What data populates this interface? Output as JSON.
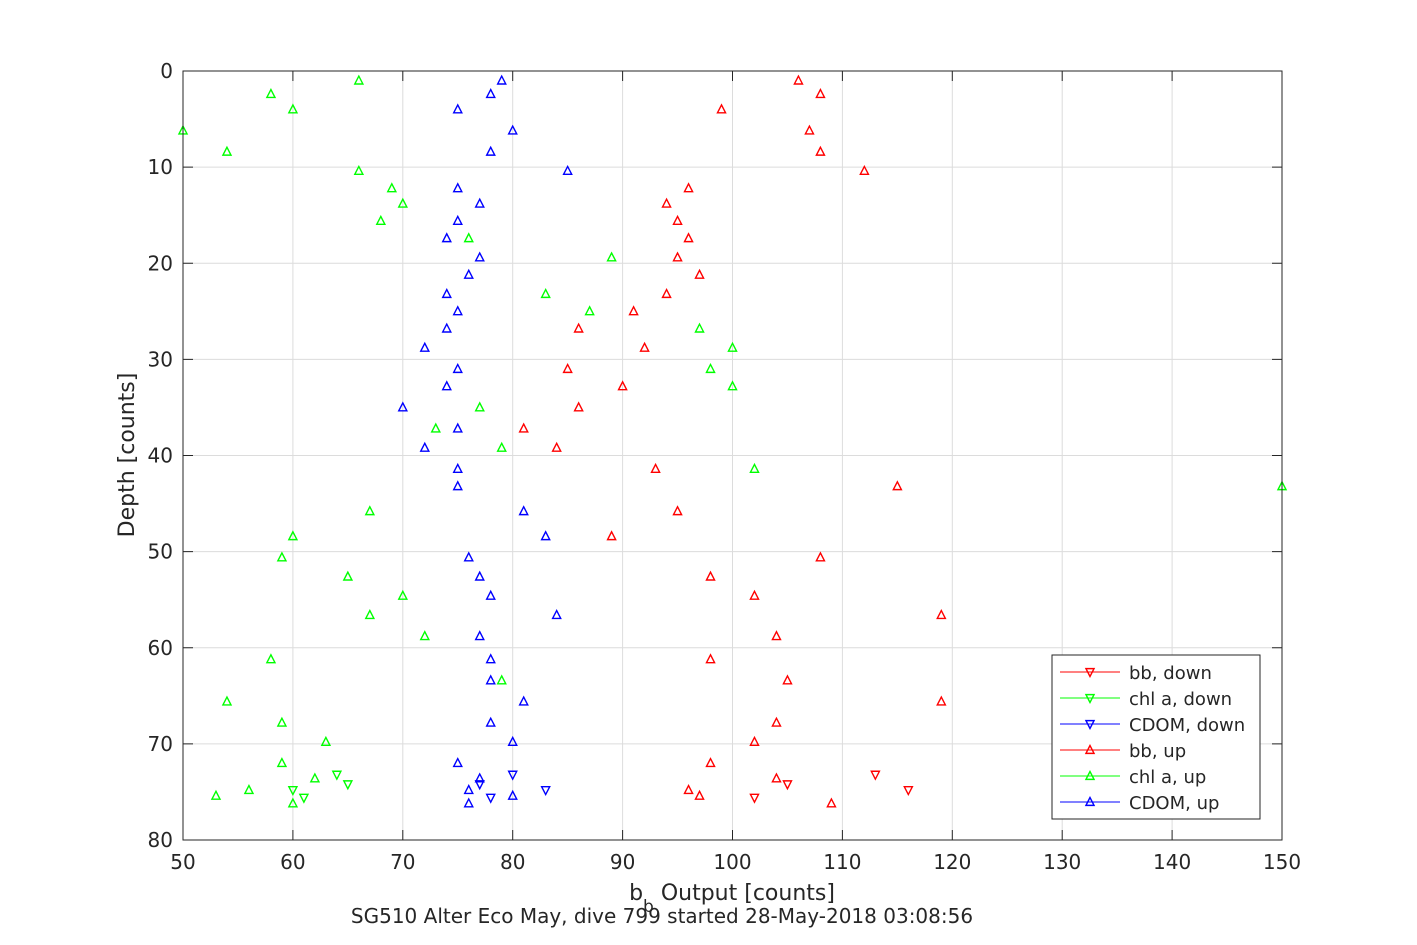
{
  "chart_data": {
    "type": "scatter",
    "title": "",
    "xlabel_main": "b",
    "xlabel_sub": "b",
    "xlabel_rest": " Output [counts]",
    "ylabel": "Depth [counts]",
    "caption": "SG510 Alter Eco May, dive 799 started 28-May-2018 03:08:56",
    "xlim": [
      50,
      150
    ],
    "ylim": [
      0,
      80
    ],
    "y_reversed": true,
    "grid": true,
    "xticks": [
      50,
      60,
      70,
      80,
      90,
      100,
      110,
      120,
      130,
      140,
      150
    ],
    "yticks": [
      0,
      10,
      20,
      30,
      40,
      50,
      60,
      70,
      80
    ],
    "legend_position": "bottom-right",
    "series": [
      {
        "name": "bb, down",
        "color": "#ff0000",
        "marker": "triangle-down",
        "points": [
          [
            102,
            75.6
          ],
          [
            105,
            74.2
          ],
          [
            113,
            73.2
          ],
          [
            116,
            74.8
          ]
        ]
      },
      {
        "name": "chl a, down",
        "color": "#00ff00",
        "marker": "triangle-down",
        "points": [
          [
            60,
            74.8
          ],
          [
            61,
            75.6
          ],
          [
            64,
            73.2
          ],
          [
            65,
            74.2
          ]
        ]
      },
      {
        "name": "CDOM, down",
        "color": "#0000ff",
        "marker": "triangle-down",
        "points": [
          [
            77,
            74.2
          ],
          [
            78,
            75.6
          ],
          [
            80,
            73.2
          ],
          [
            83,
            74.8
          ]
        ]
      },
      {
        "name": "bb, up",
        "color": "#ff0000",
        "marker": "triangle-up",
        "points": [
          [
            106,
            1.0
          ],
          [
            108,
            2.4
          ],
          [
            99,
            4.0
          ],
          [
            107,
            6.2
          ],
          [
            108,
            8.4
          ],
          [
            112,
            10.4
          ],
          [
            96,
            12.2
          ],
          [
            94,
            13.8
          ],
          [
            95,
            15.6
          ],
          [
            96,
            17.4
          ],
          [
            95,
            19.4
          ],
          [
            97,
            21.2
          ],
          [
            94,
            23.2
          ],
          [
            91,
            25.0
          ],
          [
            86,
            26.8
          ],
          [
            92,
            28.8
          ],
          [
            85,
            31.0
          ],
          [
            90,
            32.8
          ],
          [
            86,
            35.0
          ],
          [
            81,
            37.2
          ],
          [
            84,
            39.2
          ],
          [
            93,
            41.4
          ],
          [
            115,
            43.2
          ],
          [
            95,
            45.8
          ],
          [
            89,
            48.4
          ],
          [
            108,
            50.6
          ],
          [
            98,
            52.6
          ],
          [
            102,
            54.6
          ],
          [
            119,
            56.6
          ],
          [
            104,
            58.8
          ],
          [
            98,
            61.2
          ],
          [
            105,
            63.4
          ],
          [
            119,
            65.6
          ],
          [
            104,
            67.8
          ],
          [
            102,
            69.8
          ],
          [
            98,
            72.0
          ],
          [
            104,
            73.6
          ],
          [
            96,
            74.8
          ],
          [
            97,
            75.4
          ],
          [
            109,
            76.2
          ]
        ]
      },
      {
        "name": "chl a, up",
        "color": "#00ff00",
        "marker": "triangle-up",
        "points": [
          [
            66,
            1.0
          ],
          [
            58,
            2.4
          ],
          [
            60,
            4.0
          ],
          [
            50,
            6.2
          ],
          [
            54,
            8.4
          ],
          [
            66,
            10.4
          ],
          [
            69,
            12.2
          ],
          [
            70,
            13.8
          ],
          [
            68,
            15.6
          ],
          [
            76,
            17.4
          ],
          [
            89,
            19.4
          ],
          [
            83,
            23.2
          ],
          [
            87,
            25.0
          ],
          [
            97,
            26.8
          ],
          [
            100,
            28.8
          ],
          [
            98,
            31.0
          ],
          [
            100,
            32.8
          ],
          [
            77,
            35.0
          ],
          [
            73,
            37.2
          ],
          [
            79,
            39.2
          ],
          [
            102,
            41.4
          ],
          [
            150,
            43.2
          ],
          [
            67,
            45.8
          ],
          [
            60,
            48.4
          ],
          [
            59,
            50.6
          ],
          [
            65,
            52.6
          ],
          [
            70,
            54.6
          ],
          [
            67,
            56.6
          ],
          [
            72,
            58.8
          ],
          [
            58,
            61.2
          ],
          [
            79,
            63.4
          ],
          [
            54,
            65.6
          ],
          [
            59,
            67.8
          ],
          [
            63,
            69.8
          ],
          [
            59,
            72.0
          ],
          [
            62,
            73.6
          ],
          [
            56,
            74.8
          ],
          [
            53,
            75.4
          ],
          [
            60,
            76.2
          ]
        ]
      },
      {
        "name": "CDOM, up",
        "color": "#0000ff",
        "marker": "triangle-up",
        "points": [
          [
            79,
            1.0
          ],
          [
            78,
            2.4
          ],
          [
            75,
            4.0
          ],
          [
            80,
            6.2
          ],
          [
            78,
            8.4
          ],
          [
            85,
            10.4
          ],
          [
            75,
            12.2
          ],
          [
            77,
            13.8
          ],
          [
            75,
            15.6
          ],
          [
            74,
            17.4
          ],
          [
            77,
            19.4
          ],
          [
            76,
            21.2
          ],
          [
            74,
            23.2
          ],
          [
            75,
            25.0
          ],
          [
            74,
            26.8
          ],
          [
            72,
            28.8
          ],
          [
            75,
            31.0
          ],
          [
            74,
            32.8
          ],
          [
            70,
            35.0
          ],
          [
            75,
            37.2
          ],
          [
            72,
            39.2
          ],
          [
            75,
            41.4
          ],
          [
            75,
            43.2
          ],
          [
            81,
            45.8
          ],
          [
            83,
            48.4
          ],
          [
            76,
            50.6
          ],
          [
            77,
            52.6
          ],
          [
            78,
            54.6
          ],
          [
            84,
            56.6
          ],
          [
            77,
            58.8
          ],
          [
            78,
            61.2
          ],
          [
            78,
            63.4
          ],
          [
            81,
            65.6
          ],
          [
            78,
            67.8
          ],
          [
            80,
            69.8
          ],
          [
            75,
            72.0
          ],
          [
            77,
            73.6
          ],
          [
            76,
            74.8
          ],
          [
            80,
            75.4
          ],
          [
            76,
            76.2
          ]
        ]
      }
    ]
  }
}
